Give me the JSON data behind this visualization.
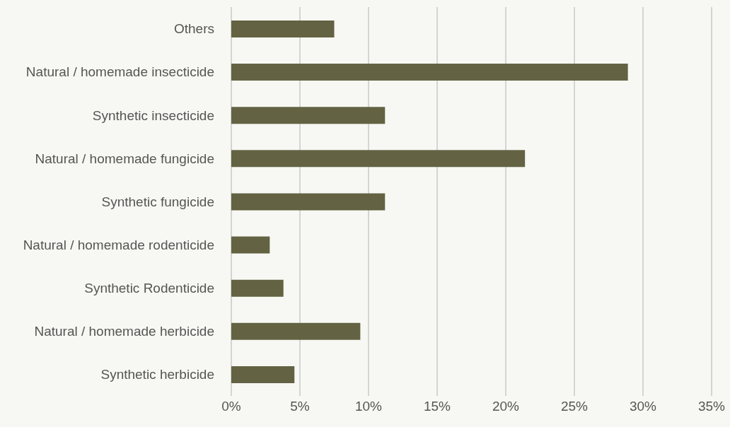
{
  "chart_data": {
    "type": "bar",
    "orientation": "horizontal",
    "categories": [
      "Others",
      "Natural / homemade insecticide",
      "Synthetic insecticide",
      "Natural / homemade fungicide",
      "Synthetic fungicide",
      "Natural / homemade rodenticide",
      "Synthetic Rodenticide",
      "Natural / homemade herbicide",
      "Synthetic herbicide"
    ],
    "values": [
      7.5,
      28.9,
      11.2,
      21.4,
      11.2,
      2.8,
      3.8,
      9.4,
      4.6
    ],
    "color": "#636343",
    "xlim": [
      0,
      35
    ],
    "xticks": [
      {
        "value": 0,
        "label": "0%"
      },
      {
        "value": 5,
        "label": "5%"
      },
      {
        "value": 10,
        "label": "10%"
      },
      {
        "value": 15,
        "label": "15%"
      },
      {
        "value": 20,
        "label": "20%"
      },
      {
        "value": 25,
        "label": "25%"
      },
      {
        "value": 30,
        "label": "30%"
      },
      {
        "value": 35,
        "label": "35%"
      }
    ],
    "grid": "x",
    "legend": false
  }
}
